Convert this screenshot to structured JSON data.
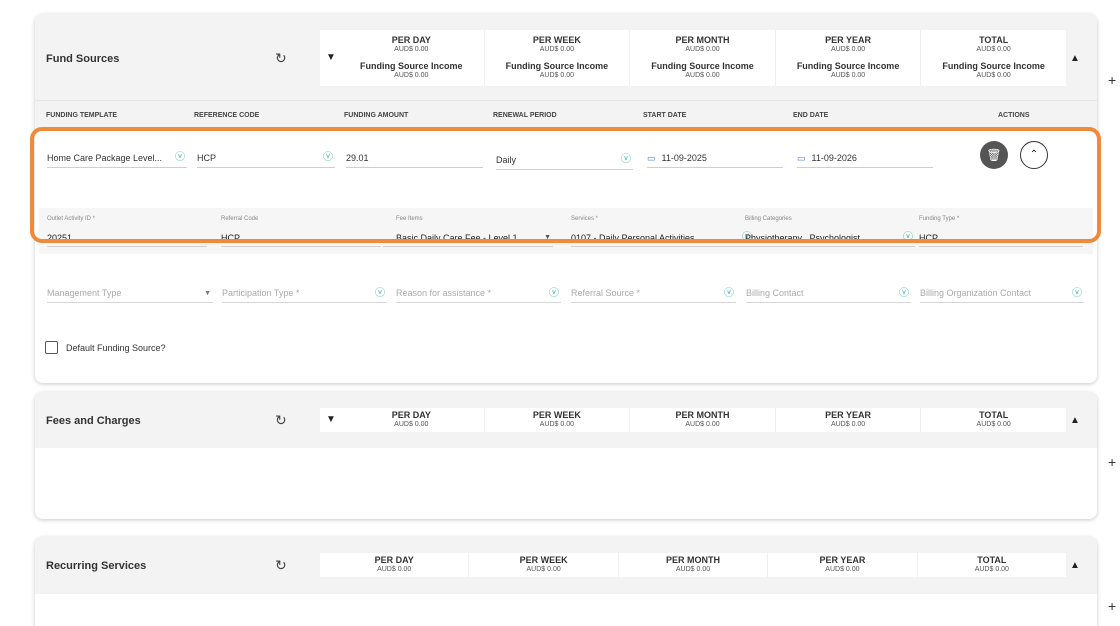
{
  "fund_sources": {
    "title": "Fund Sources",
    "summary": [
      {
        "label": "PER DAY",
        "value": "AUD$ 0.00",
        "sub_label": "Funding Source Income",
        "sub_value": "AUD$ 0.00"
      },
      {
        "label": "PER WEEK",
        "value": "AUD$ 0.00",
        "sub_label": "Funding Source Income",
        "sub_value": "AUD$ 0.00"
      },
      {
        "label": "PER MONTH",
        "value": "AUD$ 0.00",
        "sub_label": "Funding Source Income",
        "sub_value": "AUD$ 0.00"
      },
      {
        "label": "PER YEAR",
        "value": "AUD$ 0.00",
        "sub_label": "Funding Source Income",
        "sub_value": "AUD$ 0.00"
      },
      {
        "label": "TOTAL",
        "value": "AUD$ 0.00",
        "sub_label": "Funding Source Income",
        "sub_value": "AUD$ 0.00"
      }
    ],
    "columns": [
      "FUNDING TEMPLATE",
      "REFERENCE CODE",
      "FUNDING AMOUNT",
      "RENEWAL PERIOD",
      "START DATE",
      "END DATE",
      "ACTIONS"
    ],
    "row": {
      "funding_template": "Home Care Package Level...",
      "reference_code": "HCP",
      "funding_amount": "29.01",
      "renewal_period": "Daily",
      "start_date": "11-09-2025",
      "end_date": "11-09-2026"
    },
    "details": {
      "outlet_activity_label": "Outlet Activity ID *",
      "outlet_activity_value": "20251",
      "referral_code_label": "Referral Code",
      "referral_code_value": "HCP",
      "fee_items_label": "Fee Items",
      "fee_items_value": "Basic Daily Care Fee - Level 1 , ...",
      "services_label": "Services *",
      "services_value": "0107 - Daily Personal Activities , ...",
      "billing_categories_label": "Billing Categories",
      "billing_categories_value": "Physiotherapy , Psychologist",
      "funding_type_label": "Funding Type *",
      "funding_type_value": "HCP"
    },
    "optional_fields": {
      "management_type": "Management Type",
      "participation_type": "Participation Type *",
      "reason_for_assistance": "Reason for assistance *",
      "referral_source": "Referral Source *",
      "billing_contact": "Billing Contact",
      "billing_org_contact": "Billing Organization Contact"
    },
    "default_label": "Default Funding Source?"
  },
  "fees": {
    "title": "Fees and Charges",
    "summary": [
      {
        "label": "PER DAY",
        "value": "AUD$ 0.00"
      },
      {
        "label": "PER WEEK",
        "value": "AUD$ 0.00"
      },
      {
        "label": "PER MONTH",
        "value": "AUD$ 0.00"
      },
      {
        "label": "PER YEAR",
        "value": "AUD$ 0.00"
      },
      {
        "label": "TOTAL",
        "value": "AUD$ 0.00"
      }
    ]
  },
  "recurring": {
    "title": "Recurring Services",
    "summary": [
      {
        "label": "PER DAY",
        "value": "AUD$ 0.00"
      },
      {
        "label": "PER WEEK",
        "value": "AUD$ 0.00"
      },
      {
        "label": "PER MONTH",
        "value": "AUD$ 0.00"
      },
      {
        "label": "PER YEAR",
        "value": "AUD$ 0.00"
      },
      {
        "label": "TOTAL",
        "value": "AUD$ 0.00"
      }
    ]
  },
  "icons": {
    "refresh": "refresh-icon",
    "chevron_down": "chevron-down-icon",
    "chevron_up": "chevron-up-icon",
    "trash": "trash-icon",
    "calendar": "calendar-icon",
    "dropdown": "dropdown-circle-icon",
    "plus": "plus-icon"
  },
  "colors": {
    "highlight": "#ee8a3a",
    "accent": "#2bb3a3",
    "calendar": "#3a7bd5"
  }
}
